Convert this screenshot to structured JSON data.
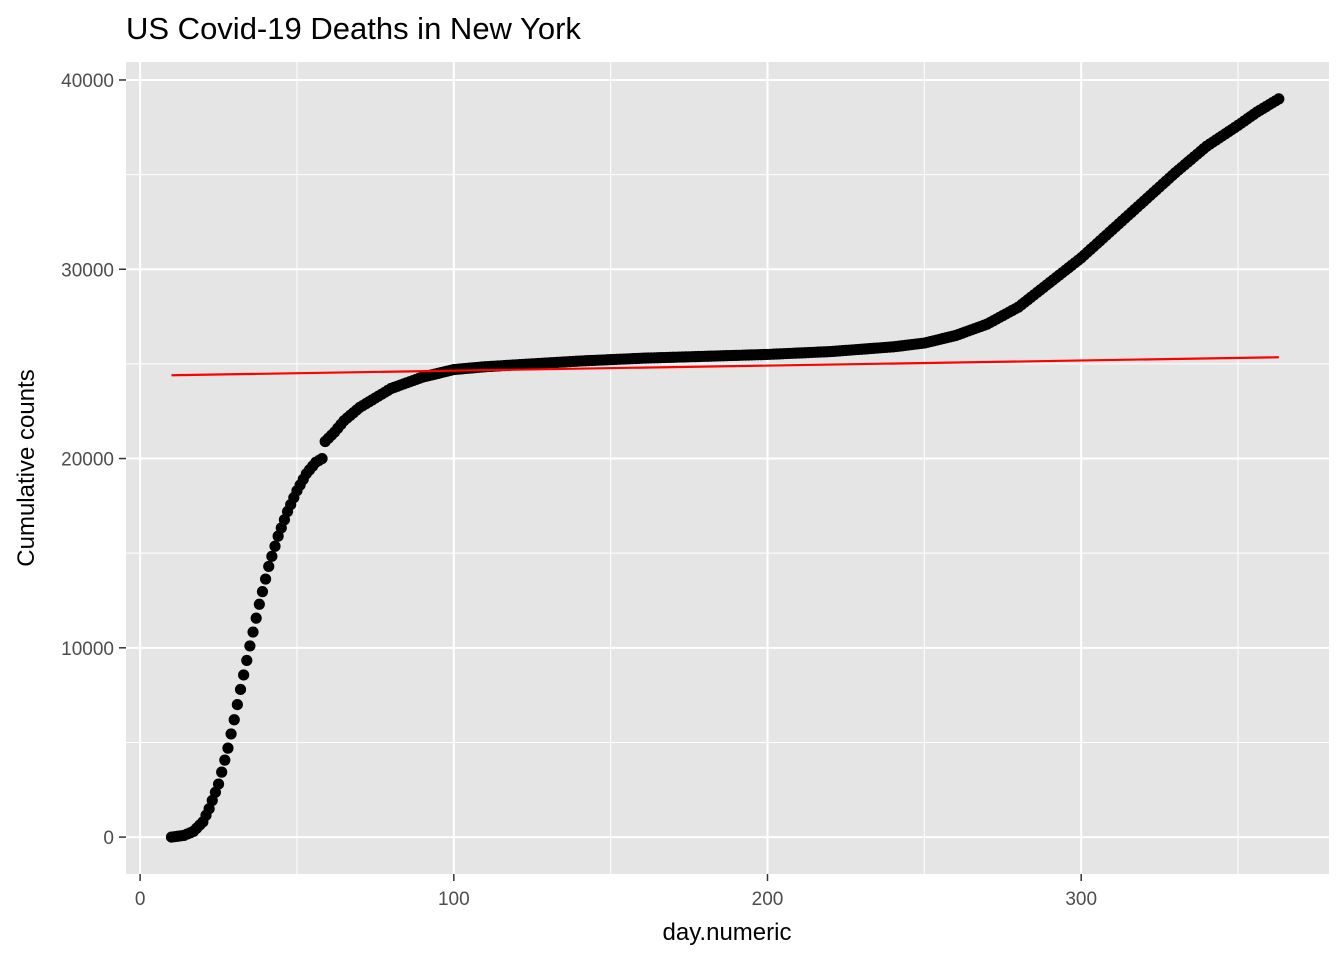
{
  "chart_data": {
    "type": "scatter",
    "title": "US Covid-19 Deaths in New York",
    "xlabel": "day.numeric",
    "ylabel": "Cumulative counts",
    "xlim": [
      -4.5,
      379
    ],
    "ylim": [
      -1950,
      40950
    ],
    "x_ticks": [
      0,
      100,
      200,
      300
    ],
    "x_tick_labels": [
      "0",
      "100",
      "200",
      "300"
    ],
    "y_ticks": [
      0,
      10000,
      20000,
      30000,
      40000
    ],
    "y_tick_labels": [
      "0",
      "10000",
      "20000",
      "30000",
      "40000"
    ],
    "x_minor_breaks": [
      50,
      150,
      250,
      350
    ],
    "y_minor_breaks": [
      5000,
      15000,
      25000,
      35000
    ],
    "grid": true,
    "legend": "none",
    "colors": {
      "panel": "#e5e5e5",
      "grid": "#ffffff",
      "points": "#000000",
      "fit_line": "#ff0000"
    },
    "series": [
      {
        "kind": "points",
        "x_range": [
          10,
          363
        ],
        "x_step": 1,
        "curve_knots": [
          [
            10,
            0
          ],
          [
            14,
            90
          ],
          [
            17,
            300
          ],
          [
            20,
            800
          ],
          [
            22,
            1500
          ],
          [
            25,
            2800
          ],
          [
            28,
            4700
          ],
          [
            30,
            6200
          ],
          [
            32,
            7800
          ],
          [
            35,
            10100
          ],
          [
            38,
            12300
          ],
          [
            41,
            14300
          ],
          [
            44,
            15900
          ],
          [
            47,
            17200
          ],
          [
            50,
            18300
          ],
          [
            53,
            19200
          ],
          [
            56,
            19800
          ],
          [
            58,
            20000
          ],
          [
            59,
            20900
          ],
          [
            62,
            21400
          ],
          [
            65,
            22000
          ],
          [
            70,
            22700
          ],
          [
            75,
            23200
          ],
          [
            80,
            23700
          ],
          [
            85,
            24000
          ],
          [
            90,
            24300
          ],
          [
            100,
            24700
          ],
          [
            110,
            24850
          ],
          [
            120,
            24950
          ],
          [
            140,
            25150
          ],
          [
            160,
            25300
          ],
          [
            180,
            25400
          ],
          [
            200,
            25500
          ],
          [
            220,
            25650
          ],
          [
            240,
            25900
          ],
          [
            250,
            26100
          ],
          [
            260,
            26500
          ],
          [
            270,
            27100
          ],
          [
            280,
            28000
          ],
          [
            290,
            29300
          ],
          [
            300,
            30600
          ],
          [
            310,
            32100
          ],
          [
            320,
            33600
          ],
          [
            330,
            35100
          ],
          [
            340,
            36500
          ],
          [
            350,
            37600
          ],
          [
            356,
            38300
          ],
          [
            363,
            39000
          ]
        ]
      },
      {
        "kind": "fit-line",
        "x": [
          10,
          363
        ],
        "y": [
          24400,
          25350
        ]
      }
    ]
  }
}
